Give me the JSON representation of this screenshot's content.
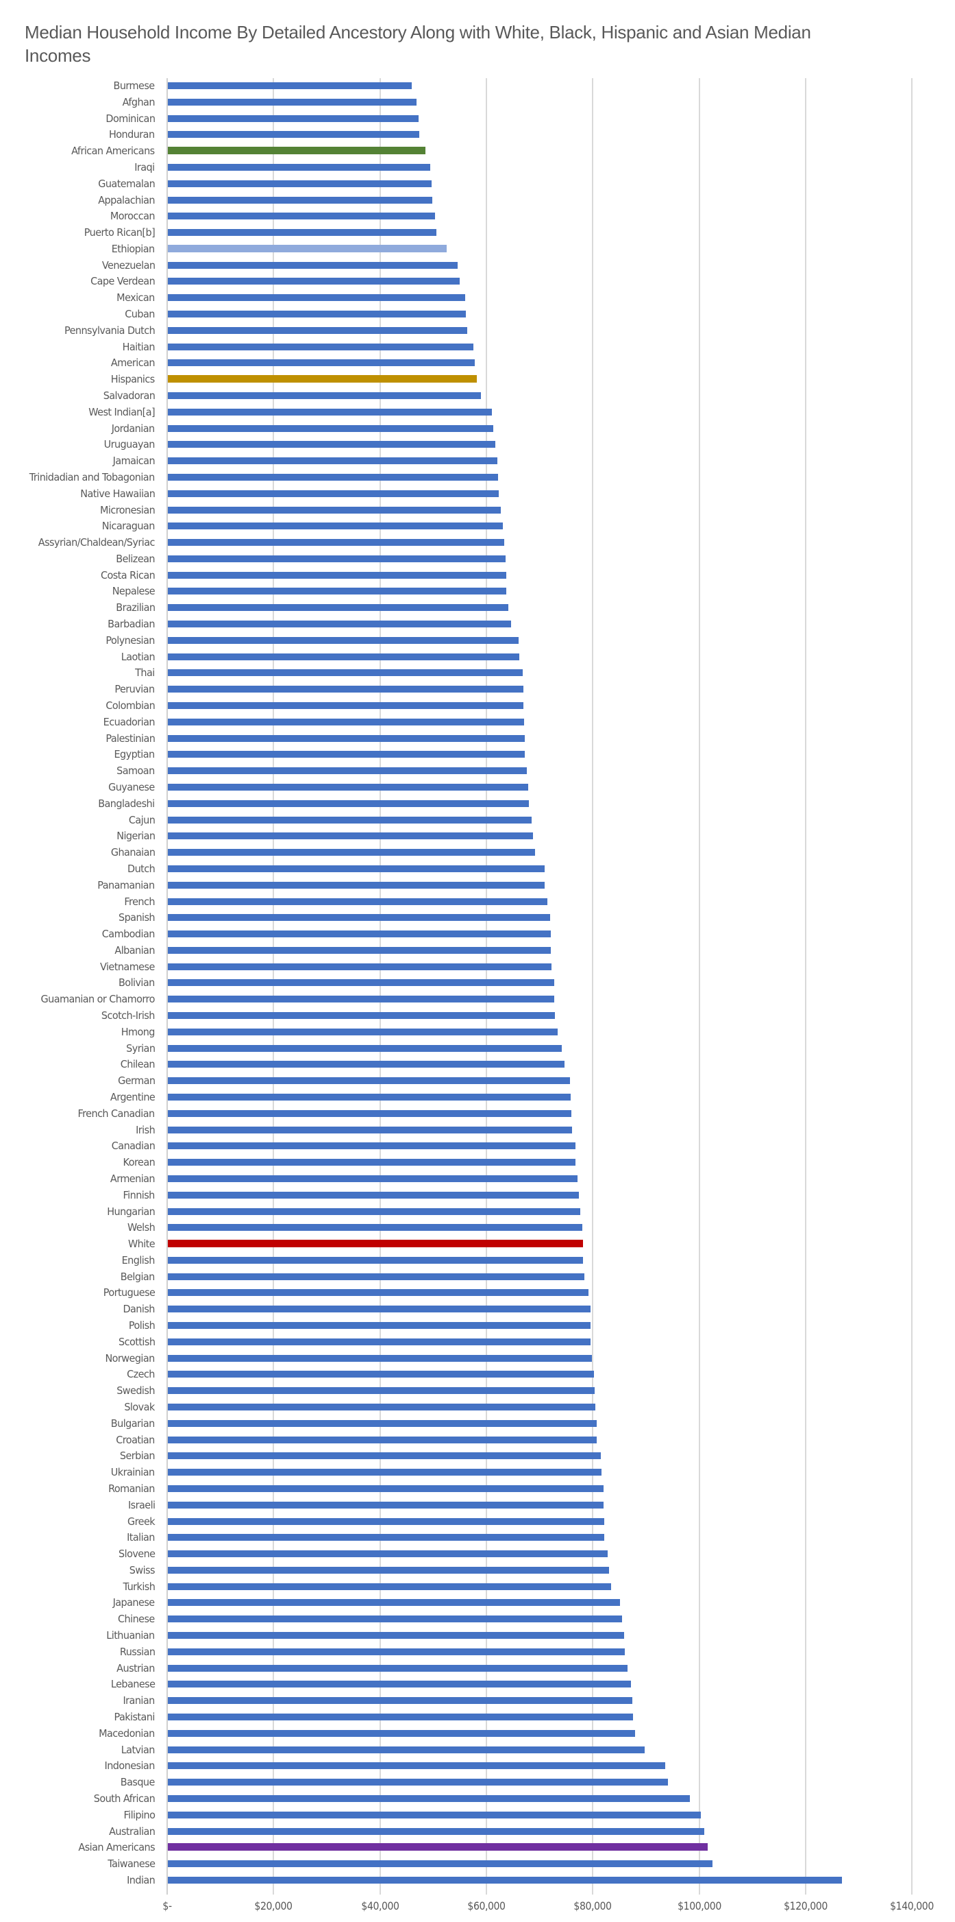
{
  "title": "Median Household Income By Detailed Ancestory Along with White, Black, Hispanic and Asian Median Incomes",
  "colors": {
    "default": "#4472C4",
    "African Americans": "#548235",
    "Ethiopian": "#8FAADC",
    "Hispanics": "#BF9000",
    "White": "#C00000",
    "Asian Americans": "#7030A0",
    "gridline": "#D9D9D9",
    "text": "#595959"
  },
  "chart_data": {
    "type": "bar",
    "orientation": "horizontal",
    "title": "Median Household Income By Detailed Ancestory Along with White, Black, Hispanic and Asian Median Incomes",
    "xlabel": "",
    "ylabel": "",
    "xlim": [
      0,
      140000
    ],
    "x_ticks": [
      "$-",
      "$20,000",
      "$40,000",
      "$60,000",
      "$80,000",
      "$100,000",
      "$120,000",
      "$140,000"
    ],
    "x_tick_values": [
      0,
      20000,
      40000,
      60000,
      80000,
      100000,
      120000,
      140000
    ],
    "grid": true,
    "legend": "none",
    "highlighted": [
      "African Americans",
      "Ethiopian",
      "Hispanics",
      "White",
      "Asian Americans"
    ],
    "categories": [
      "Burmese",
      "Afghan",
      "Dominican",
      "Honduran",
      "African Americans",
      "Iraqi",
      "Guatemalan",
      "Appalachian",
      "Moroccan",
      "Puerto Rican[b]",
      "Ethiopian",
      "Venezuelan",
      "Cape Verdean",
      "Mexican",
      "Cuban",
      "Pennsylvania Dutch",
      "Haitian",
      "American",
      "Hispanics",
      "Salvadoran",
      "West Indian[a]",
      "Jordanian",
      "Uruguayan",
      "Jamaican",
      "Trinidadian and Tobagonian",
      "Native Hawaiian",
      "Micronesian",
      "Nicaraguan",
      "Assyrian/Chaldean/Syriac",
      "Belizean",
      "Costa Rican",
      "Nepalese",
      "Brazilian",
      "Barbadian",
      "Polynesian",
      "Laotian",
      "Thai",
      "Peruvian",
      "Colombian",
      "Ecuadorian",
      "Palestinian",
      "Egyptian",
      "Samoan",
      "Guyanese",
      "Bangladeshi",
      "Cajun",
      "Nigerian",
      "Ghanaian",
      "Dutch",
      "Panamanian",
      "French",
      "Spanish",
      "Cambodian",
      "Albanian",
      "Vietnamese",
      "Bolivian",
      "Guamanian or Chamorro",
      "Scotch-Irish",
      "Hmong",
      "Syrian",
      "Chilean",
      "German",
      "Argentine",
      "French Canadian",
      "Irish",
      "Canadian",
      "Korean",
      "Armenian",
      "Finnish",
      "Hungarian",
      "Welsh",
      "White",
      "English",
      "Belgian",
      "Portuguese",
      "Danish",
      "Polish",
      "Scottish",
      "Norwegian",
      "Czech",
      "Swedish",
      "Slovak",
      "Bulgarian",
      "Croatian",
      "Serbian",
      "Ukrainian",
      "Romanian",
      "Israeli",
      "Greek",
      "Italian",
      "Slovene",
      "Swiss",
      "Turkish",
      "Japanese",
      "Chinese",
      "Lithuanian",
      "Russian",
      "Austrian",
      "Lebanese",
      "Iranian",
      "Pakistani",
      "Macedonian",
      "Latvian",
      "Indonesian",
      "Basque",
      "South African",
      "Filipino",
      "Australian",
      "Asian Americans",
      "Taiwanese",
      "Indian"
    ],
    "values": [
      45900,
      46800,
      47100,
      47300,
      48400,
      49300,
      49600,
      49700,
      50200,
      50500,
      52400,
      54500,
      54900,
      55900,
      56000,
      56300,
      57400,
      57700,
      58100,
      58900,
      60900,
      61200,
      61600,
      62000,
      62100,
      62200,
      62600,
      63000,
      63200,
      63500,
      63600,
      63600,
      64000,
      64500,
      65900,
      66100,
      66700,
      66800,
      66800,
      67000,
      67100,
      67100,
      67500,
      67700,
      67900,
      68400,
      68700,
      69000,
      70800,
      70800,
      71400,
      71900,
      72000,
      72000,
      72100,
      72600,
      72600,
      72800,
      73300,
      74100,
      74600,
      75600,
      75700,
      75900,
      76000,
      76600,
      76600,
      77000,
      77300,
      77500,
      77900,
      78100,
      78100,
      78300,
      79100,
      79500,
      79500,
      79500,
      79700,
      80100,
      80200,
      80400,
      80600,
      80600,
      81400,
      81500,
      81900,
      81900,
      82000,
      82000,
      82700,
      82900,
      83300,
      85000,
      85400,
      85800,
      85900,
      86400,
      87100,
      87300,
      87500,
      87800,
      89600,
      93500,
      94000,
      98100,
      100200,
      100800,
      101500,
      102400,
      126700
    ]
  }
}
